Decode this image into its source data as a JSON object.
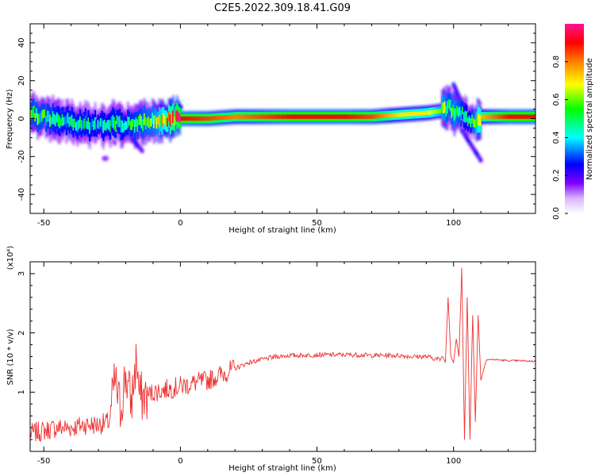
{
  "title": "C2E5.2022.309.18.41.G09",
  "colors": {
    "snr_line": "#ee3333",
    "spectrum_band": "#e0302a",
    "background": "#ffffff",
    "axis": "#000000"
  },
  "colorbar": {
    "label": "Normalized spectral amplitude",
    "range": [
      0.0,
      1.0
    ],
    "ticks": [
      "0.0",
      "0.2",
      "0.4",
      "0.6",
      "0.8"
    ],
    "tick_values": [
      0.0,
      0.2,
      0.4,
      0.6,
      0.8
    ],
    "colormap": [
      "#ffffff",
      "#d9b3ff",
      "#7f00ff",
      "#0000ff",
      "#00ffff",
      "#00ff00",
      "#ffff00",
      "#ff7f00",
      "#ff0000",
      "#ff1493"
    ]
  },
  "chart_data": [
    {
      "type": "heatmap",
      "title": "C2E5.2022.309.18.41.G09",
      "xlabel": "Height of straight line (km)",
      "ylabel": "Frequency (Hz)",
      "xlim": [
        -55,
        130
      ],
      "ylim": [
        -50,
        50
      ],
      "xticks": [
        "-50",
        "0",
        "50",
        "100"
      ],
      "xtick_values": [
        -50,
        0,
        50,
        100
      ],
      "yticks": [
        "-40",
        "-20",
        "0",
        "20",
        "40"
      ],
      "ytick_values": [
        -40,
        -20,
        0,
        20,
        40
      ],
      "grid": false,
      "ridge": {
        "x": [
          -55,
          -50,
          -45,
          -40,
          -35,
          -30,
          -25,
          -20,
          -15,
          -10,
          -5,
          0,
          10,
          20,
          30,
          40,
          50,
          60,
          70,
          80,
          90,
          95,
          98,
          100,
          102,
          104,
          106,
          110,
          120,
          130
        ],
        "freq": [
          2,
          1,
          0,
          -2,
          -3,
          -3,
          -2,
          -3,
          -2,
          -1,
          0,
          0,
          0,
          1,
          1,
          1,
          1,
          1,
          1,
          2,
          3,
          4,
          6,
          2,
          4,
          1,
          -2,
          1,
          1,
          1
        ],
        "amplitude": [
          0.5,
          0.5,
          0.45,
          0.45,
          0.45,
          0.4,
          0.45,
          0.45,
          0.5,
          0.55,
          0.7,
          0.9,
          0.85,
          0.8,
          0.85,
          0.9,
          0.9,
          0.9,
          0.85,
          0.7,
          0.7,
          0.6,
          0.5,
          0.55,
          0.5,
          0.4,
          0.45,
          0.75,
          0.9,
          0.9
        ]
      },
      "features": [
        {
          "x": [
            100,
            103
          ],
          "freq": [
            18,
            8
          ],
          "amplitude": 0.25
        },
        {
          "x": [
            103,
            110
          ],
          "freq": [
            -6,
            -22
          ],
          "amplitude": 0.25
        },
        {
          "x": [
            -18,
            -14
          ],
          "freq": [
            -10,
            -17
          ],
          "amplitude": 0.25
        },
        {
          "x": [
            -28,
            -27
          ],
          "freq": [
            -21,
            -21
          ],
          "amplitude": 0.15
        }
      ]
    },
    {
      "type": "line",
      "xlabel": "Height of straight line (km)",
      "ylabel": "SNR (10 * v/v)",
      "yexponent": "(x10⁴)",
      "xlim": [
        -55,
        130
      ],
      "ylim": [
        0.0,
        3.2
      ],
      "xticks": [
        "-50",
        "0",
        "50",
        "100"
      ],
      "xtick_values": [
        -50,
        0,
        50,
        100
      ],
      "yticks": [
        "1",
        "2",
        "3"
      ],
      "ytick_values": [
        1,
        2,
        3
      ],
      "grid": false,
      "series": [
        {
          "x": [
            -55,
            -50,
            -45,
            -40,
            -35,
            -30,
            -26,
            -24,
            -22,
            -20,
            -18,
            -16,
            -15,
            -12,
            -10,
            -5,
            0,
            5,
            10,
            15,
            20,
            25,
            30,
            35,
            40,
            45,
            50,
            55,
            60,
            65,
            70,
            75,
            80,
            85,
            90,
            95,
            96,
            97,
            98,
            99,
            100,
            101,
            102,
            103,
            104,
            105,
            106,
            107,
            108,
            109,
            110,
            112,
            115,
            120,
            125,
            130
          ],
          "y": [
            0.3,
            0.35,
            0.4,
            0.4,
            0.45,
            0.45,
            0.5,
            1.2,
            0.7,
            1.3,
            0.8,
            1.6,
            0.9,
            0.95,
            1.0,
            1.05,
            1.1,
            1.15,
            1.2,
            1.3,
            1.4,
            1.5,
            1.55,
            1.6,
            1.62,
            1.62,
            1.63,
            1.63,
            1.63,
            1.63,
            1.62,
            1.62,
            1.62,
            1.6,
            1.6,
            1.55,
            1.6,
            1.5,
            2.6,
            1.6,
            1.5,
            1.9,
            1.6,
            3.1,
            0.2,
            2.6,
            0.2,
            2.3,
            0.5,
            2.3,
            1.2,
            1.55,
            1.55,
            1.53,
            1.53,
            1.52
          ]
        }
      ]
    }
  ]
}
